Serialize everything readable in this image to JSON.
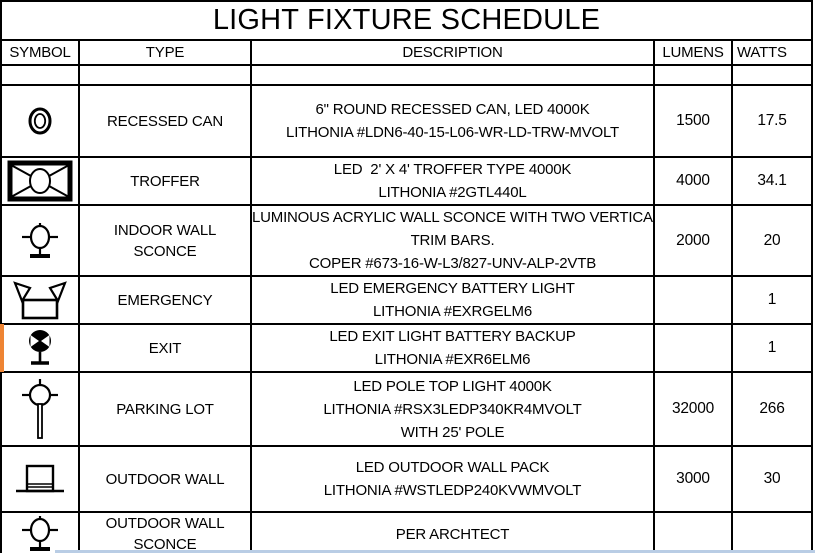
{
  "title": "LIGHT FIXTURE SCHEDULE",
  "columns": [
    "SYMBOL",
    "TYPE",
    "DESCRIPTION",
    "LUMENS",
    "WATTS"
  ],
  "rows": [
    {
      "symbol": "",
      "type": [],
      "desc": [],
      "lumens": "",
      "watts": ""
    },
    {
      "symbol": "recessed-can",
      "type": [
        "RECESSED CAN"
      ],
      "desc": [
        "6\" ROUND RECESSED CAN, LED 4000K",
        "LITHONIA #LDN6-40-15-L06-WR-LD-TRW-MVOLT"
      ],
      "lumens": "1500",
      "watts": "17.5"
    },
    {
      "symbol": "troffer",
      "type": [
        "TROFFER"
      ],
      "desc": [
        "LED  2' X 4' TROFFER TYPE 4000K",
        "LITHONIA #2GTL440L"
      ],
      "lumens": "4000",
      "watts": "34.1"
    },
    {
      "symbol": "wall-sconce",
      "type": [
        "INDOOR WALL",
        "SCONCE"
      ],
      "desc": [
        "LUMINOUS ACRYLIC WALL SCONCE WITH TWO VERTICAL",
        "TRIM BARS.",
        "COPER #673-16-W-L3/827-UNV-ALP-2VTB"
      ],
      "lumens": "2000",
      "watts": "20"
    },
    {
      "symbol": "emergency",
      "type": [
        "EMERGENCY"
      ],
      "desc": [
        "LED EMERGENCY BATTERY LIGHT",
        "LITHONIA #EXRGELM6"
      ],
      "lumens": "",
      "watts": "1"
    },
    {
      "symbol": "exit",
      "type": [
        "EXIT"
      ],
      "desc": [
        "LED EXIT LIGHT BATTERY BACKUP",
        "LITHONIA #EXR6ELM6"
      ],
      "lumens": "",
      "watts": "1"
    },
    {
      "symbol": "pole-light",
      "type": [
        "PARKING LOT"
      ],
      "desc": [
        "LED POLE TOP LIGHT 4000K",
        "LITHONIA #RSX3LEDP340KR4MVOLT",
        "WITH 25' POLE"
      ],
      "lumens": "32000",
      "watts": "266"
    },
    {
      "symbol": "wall-pack",
      "type": [
        "OUTDOOR WALL"
      ],
      "desc": [
        "LED OUTDOOR WALL PACK",
        "LITHONIA #WSTLEDP240KVWMVOLT"
      ],
      "lumens": "3000",
      "watts": "30"
    },
    {
      "symbol": "wall-sconce",
      "type": [
        "OUTDOOR WALL",
        "SCONCE"
      ],
      "desc": [
        "PER ARCHTECT"
      ],
      "lumens": "",
      "watts": ""
    }
  ],
  "colors": {
    "border": "#000000",
    "exit_row_left_highlight": "#EE8433",
    "bottom_edge_strip": "#B9CDE5"
  }
}
